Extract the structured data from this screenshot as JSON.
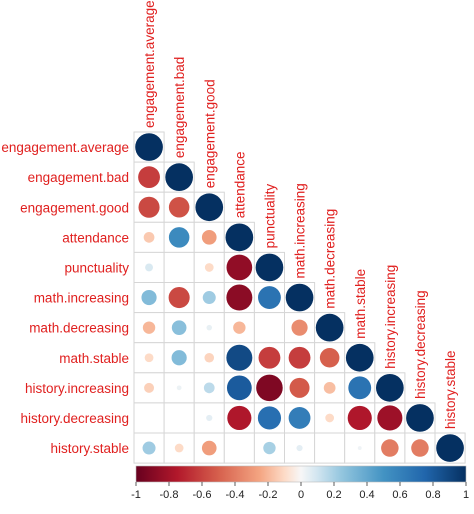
{
  "chart_data": {
    "type": "heatmap",
    "style": "circle-correlation-lower-triangle",
    "variables": [
      "engagement.average",
      "engagement.bad",
      "engagement.good",
      "attendance",
      "punctuality",
      "math.increasing",
      "math.decreasing",
      "math.stable",
      "history.increasing",
      "history.decreasing",
      "history.stable"
    ],
    "matrix": [
      [
        1
      ],
      [
        -0.62,
        1
      ],
      [
        -0.58,
        -0.55,
        1
      ],
      [
        -0.15,
        0.55,
        -0.28,
        1
      ],
      [
        0.08,
        0.0,
        -0.1,
        -0.86,
        1
      ],
      [
        0.3,
        -0.58,
        0.22,
        -0.88,
        0.68,
        1
      ],
      [
        -0.2,
        0.28,
        0.04,
        -0.2,
        0.0,
        -0.34,
        1
      ],
      [
        -0.1,
        0.3,
        -0.12,
        0.88,
        -0.62,
        -0.62,
        -0.5,
        1
      ],
      [
        -0.13,
        0.03,
        0.15,
        0.8,
        -0.92,
        -0.52,
        -0.18,
        0.68,
        1
      ],
      [
        0.0,
        0.0,
        0.05,
        -0.76,
        0.7,
        0.62,
        -0.1,
        -0.76,
        -0.82,
        1
      ],
      [
        0.22,
        -0.1,
        -0.28,
        0.0,
        0.2,
        0.05,
        0.0,
        0.02,
        -0.4,
        -0.4,
        1
      ]
    ],
    "color_scale": {
      "range": [
        -1,
        1
      ],
      "ticks": [
        "-1",
        "-0.8",
        "-0.6",
        "-0.4",
        "-0.2",
        "0",
        "0.2",
        "0.4",
        "0.6",
        "0.8",
        "1"
      ],
      "negative_color": "#67001f",
      "mid_color": "#f7f7f7",
      "positive_color": "#053061"
    },
    "legend_position": "bottom",
    "label_color": "#e0201f",
    "title": ""
  }
}
